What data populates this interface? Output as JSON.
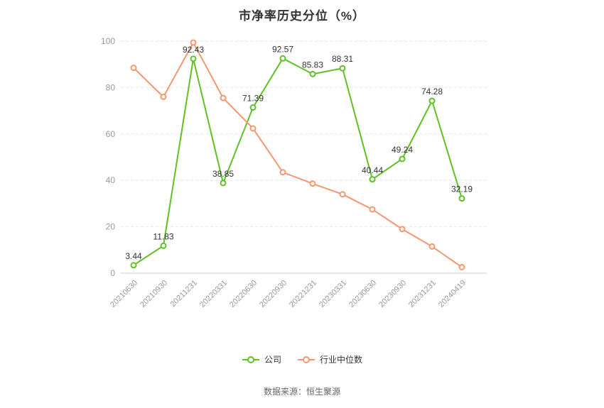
{
  "page": {
    "title": "市净率历史分位（%）",
    "footer": "数据来源：恒生聚源"
  },
  "chart_data": {
    "type": "line",
    "title": "市净率历史分位（%）",
    "categories": [
      "20210630",
      "20210930",
      "20211231",
      "20220331",
      "20220630",
      "20220930",
      "20221231",
      "20230331",
      "20230630",
      "20230930",
      "20231231",
      "20240419"
    ],
    "series": [
      {
        "name": "公司",
        "color": "#5FC122",
        "values": [
          3.44,
          11.83,
          92.43,
          38.85,
          71.39,
          92.57,
          85.83,
          88.31,
          40.44,
          49.24,
          74.28,
          32.19
        ],
        "show_labels": true,
        "labels": [
          "3.44",
          "11.83",
          "92.43",
          "38.85",
          "71.39",
          "92.57",
          "85.83",
          "88.31",
          "40.44",
          "49.24",
          "74.28",
          "32.19"
        ]
      },
      {
        "name": "行业中位数",
        "color": "#F5976E",
        "values": [
          88.5,
          76.0,
          99.4,
          75.5,
          62.4,
          43.5,
          38.6,
          34.0,
          27.5,
          19.0,
          11.5,
          2.6
        ],
        "show_labels": false,
        "labels": []
      }
    ],
    "xlabel": "",
    "ylabel": "",
    "ylim": [
      0,
      100
    ],
    "yticks": [
      0,
      20,
      40,
      60,
      80,
      100
    ],
    "grid": "horizontal-dashed",
    "legend_position": "bottom",
    "marker": "hollow-circle"
  },
  "style_colors": {
    "label_text": "#333333",
    "axis_text": "#999999",
    "gridline": "#E4E7ED",
    "axis_line": "#CCCCCC"
  }
}
